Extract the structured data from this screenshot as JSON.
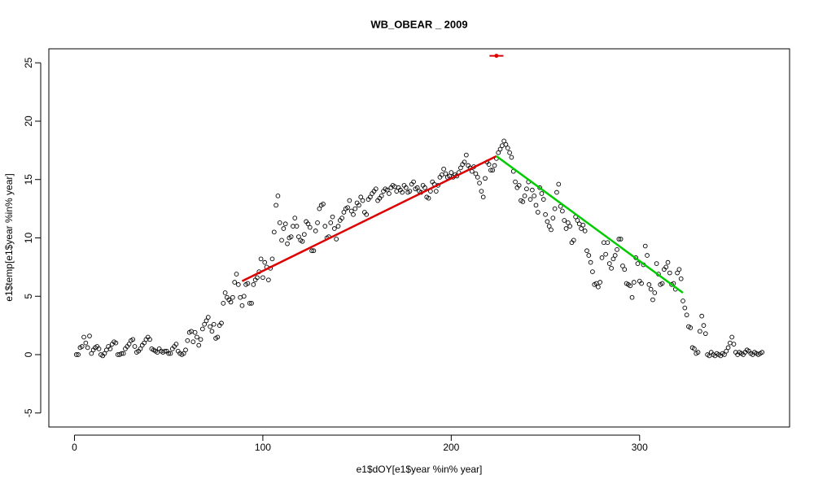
{
  "chart_data": {
    "type": "scatter",
    "title": "WB_OBEAR _ 2009",
    "xlabel": "e1$dOY[e1$year %in% year]",
    "ylabel": "e1$temp[e1$year %in% year]",
    "xlim": [
      -13.6,
      379.6
    ],
    "ylim": [
      -6.2,
      26.2
    ],
    "xticks": [
      0,
      100,
      200,
      300
    ],
    "yticks": [
      -5,
      0,
      5,
      10,
      15,
      20,
      25
    ],
    "series": [
      {
        "kind": "points",
        "color": "#000000",
        "x": [
          1,
          2,
          3,
          4,
          5,
          6,
          7,
          8,
          9,
          10,
          11,
          12,
          13,
          14,
          15,
          16,
          17,
          18,
          19,
          20,
          21,
          22,
          23,
          24,
          25,
          26,
          27,
          28,
          29,
          30,
          31,
          32,
          33,
          34,
          35,
          36,
          37,
          38,
          39,
          40,
          41,
          42,
          43,
          44,
          45,
          46,
          47,
          48,
          49,
          50,
          51,
          52,
          53,
          54,
          55,
          56,
          57,
          58,
          59,
          60,
          61,
          62,
          63,
          64,
          65,
          66,
          67,
          68,
          69,
          70,
          71,
          72,
          73,
          74,
          75,
          76,
          77,
          78,
          79,
          80,
          81,
          82,
          83,
          84,
          85,
          86,
          87,
          88,
          89,
          90,
          91,
          92,
          93,
          94,
          95,
          96,
          97,
          98,
          99,
          100,
          101,
          102,
          103,
          104,
          105,
          106,
          107,
          108,
          109,
          110,
          111,
          112,
          113,
          114,
          115,
          116,
          117,
          118,
          119,
          120,
          121,
          122,
          123,
          124,
          125,
          126,
          127,
          128,
          129,
          130,
          131,
          132,
          133,
          134,
          135,
          136,
          137,
          138,
          139,
          140,
          141,
          142,
          143,
          144,
          145,
          146,
          147,
          148,
          149,
          150,
          151,
          152,
          153,
          154,
          155,
          156,
          157,
          158,
          159,
          160,
          161,
          162,
          163,
          164,
          165,
          166,
          167,
          168,
          169,
          170,
          171,
          172,
          173,
          174,
          175,
          176,
          177,
          178,
          179,
          180,
          181,
          182,
          183,
          184,
          185,
          186,
          187,
          188,
          189,
          190,
          191,
          192,
          193,
          194,
          195,
          196,
          197,
          198,
          199,
          200,
          201,
          202,
          203,
          204,
          205,
          206,
          207,
          208,
          209,
          210,
          211,
          212,
          213,
          214,
          215,
          216,
          217,
          218,
          219,
          220,
          221,
          222,
          223,
          224,
          225,
          226,
          227,
          228,
          229,
          230,
          231,
          232,
          233,
          234,
          235,
          236,
          237,
          238,
          239,
          240,
          241,
          242,
          243,
          244,
          245,
          246,
          247,
          248,
          249,
          250,
          251,
          252,
          253,
          254,
          255,
          256,
          257,
          258,
          259,
          260,
          261,
          262,
          263,
          264,
          265,
          266,
          267,
          268,
          269,
          270,
          271,
          272,
          273,
          274,
          275,
          276,
          277,
          278,
          279,
          280,
          281,
          282,
          283,
          284,
          285,
          286,
          287,
          288,
          289,
          290,
          291,
          292,
          293,
          294,
          295,
          296,
          297,
          298,
          299,
          300,
          301,
          302,
          303,
          304,
          305,
          306,
          307,
          308,
          309,
          310,
          311,
          312,
          313,
          314,
          315,
          316,
          317,
          318,
          319,
          320,
          321,
          322,
          323,
          324,
          325,
          326,
          327,
          328,
          329,
          330,
          331,
          332,
          333,
          334,
          335,
          336,
          337,
          338,
          339,
          340,
          341,
          342,
          343,
          344,
          345,
          346,
          347,
          348,
          349,
          350,
          351,
          352,
          353,
          354,
          355,
          356,
          357,
          358,
          359,
          360,
          361,
          362,
          363,
          364,
          365
        ],
        "values": [
          0,
          0,
          0.6,
          0.7,
          1.5,
          1.0,
          0.6,
          1.6,
          0.1,
          0.4,
          0.6,
          0.7,
          0.5,
          0,
          -0.1,
          0.1,
          0.4,
          0.7,
          0.5,
          0.9,
          1.1,
          1.0,
          0,
          0,
          0.1,
          0.1,
          0.5,
          0.7,
          0.9,
          1.2,
          1.3,
          0.7,
          0.2,
          0.3,
          0.5,
          0.8,
          1.0,
          1.3,
          1.5,
          1.3,
          0.5,
          0.4,
          0.3,
          0.2,
          0.5,
          0.3,
          0.2,
          0.3,
          0.3,
          0.1,
          0.1,
          0.5,
          0.7,
          0.9,
          0.3,
          0.1,
          0,
          0.1,
          0.4,
          1.2,
          1.9,
          2.0,
          1.1,
          1.9,
          1.5,
          0.8,
          1.3,
          2.2,
          2.6,
          2.9,
          3.2,
          2.4,
          2.0,
          2.6,
          1.4,
          1.5,
          2.5,
          2.7,
          4.4,
          5.3,
          4.9,
          4.7,
          4.5,
          4.9,
          6.2,
          6.9,
          6.0,
          4.9,
          4.2,
          5.0,
          6.0,
          6.1,
          4.4,
          4.4,
          6.0,
          6.4,
          6.6,
          7.1,
          8.2,
          6.6,
          7.9,
          7.5,
          6.4,
          7.4,
          8.2,
          10.5,
          12.8,
          13.6,
          11.3,
          9.8,
          10.8,
          11.2,
          9.5,
          10.0,
          10.1,
          11.0,
          11.7,
          11.0,
          10.1,
          9.8,
          9.7,
          10.3,
          11.4,
          11.2,
          10.9,
          8.9,
          8.9,
          10.6,
          11.3,
          12.5,
          12.8,
          12.9,
          11.0,
          10.0,
          10.1,
          11.3,
          11.8,
          10.8,
          9.9,
          11.0,
          11.5,
          11.7,
          12.2,
          12.5,
          12.6,
          13.2,
          12.3,
          12.0,
          12.5,
          13.0,
          12.8,
          13.5,
          13.2,
          12.2,
          12.0,
          13.3,
          13.5,
          13.8,
          14.0,
          14.2,
          13.2,
          13.4,
          13.6,
          14.0,
          14.2,
          14.1,
          13.8,
          14.3,
          14.5,
          14.4,
          14.0,
          14.3,
          14.1,
          13.9,
          14.5,
          14.3,
          13.9,
          14.0,
          14.6,
          14.8,
          14.2,
          14.3,
          14.0,
          13.9,
          14.5,
          14.3,
          13.5,
          13.4,
          14.0,
          14.8,
          14.6,
          14.0,
          14.5,
          15.2,
          15.4,
          15.9,
          15.5,
          15.2,
          15.3,
          15.6,
          15.2,
          15.4,
          15.3,
          15.6,
          16.0,
          16.3,
          16.5,
          17.1,
          16.2,
          16.0,
          15.7,
          16.1,
          15.5,
          15.2,
          14.7,
          14.0,
          13.5,
          15.1,
          16.5,
          16.3,
          15.8,
          15.8,
          16.2,
          16.8,
          17.3,
          17.6,
          17.9,
          18.3,
          18.0,
          17.7,
          17.3,
          16.9,
          15.7,
          14.8,
          14.3,
          14.5,
          13.2,
          13.1,
          13.6,
          14.2,
          14.8,
          13.3,
          14.1,
          13.6,
          12.8,
          12.2,
          14.3,
          13.8,
          13.3,
          12.0,
          11.4,
          11.0,
          10.7,
          11.7,
          12.5,
          13.9,
          14.6,
          12.7,
          12.3,
          11.5,
          10.8,
          11.3,
          11.0,
          9.6,
          9.8,
          11.8,
          11.5,
          11.2,
          10.8,
          11.1,
          10.6,
          8.9,
          8.5,
          7.9,
          7.1,
          6.0,
          6.1,
          5.8,
          6.2,
          8.3,
          9.6,
          8.6,
          9.6,
          7.8,
          7.4,
          8.2,
          8.5,
          9.0,
          9.9,
          9.9,
          7.6,
          7.3,
          6.1,
          6.0,
          5.9,
          4.9,
          6.2,
          8.3,
          7.8,
          6.3,
          6.1,
          7.7,
          9.3,
          8.5,
          6.0,
          5.6,
          4.7,
          5.3,
          7.8,
          6.9,
          6.0,
          6.1,
          7.3,
          7.5,
          7.9,
          7.0,
          6.0,
          6.1,
          5.6,
          7.0,
          7.3,
          6.5,
          4.6,
          4.0,
          3.4,
          2.4,
          2.3,
          0.6,
          0.5,
          0.1,
          0.2,
          2.0,
          3.3,
          2.5,
          1.8,
          0,
          -0.1,
          0.2,
          0,
          -0.1,
          0.1,
          0,
          -0.1,
          0.1,
          0,
          0.3,
          0.6,
          1.0,
          1.5,
          0.9,
          0.2,
          0,
          0.2,
          0.1,
          0,
          0.2,
          0.4,
          0.3,
          0.1,
          0,
          0.2,
          0.1,
          0,
          0.1,
          0.2
        ]
      },
      {
        "kind": "line",
        "color": "#dd0000",
        "x": [
          89,
          224
        ],
        "values": [
          6.3,
          17.0
        ]
      },
      {
        "kind": "line",
        "color": "#00cc00",
        "x": [
          224,
          323
        ],
        "values": [
          17.0,
          5.3
        ]
      },
      {
        "kind": "errpoint",
        "color": "#dd0000",
        "x": [
          224
        ],
        "values": [
          25.6
        ],
        "xerr": [
          [
            220.3,
            227.7
          ]
        ]
      }
    ]
  }
}
